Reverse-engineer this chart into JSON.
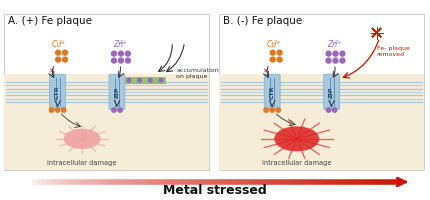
{
  "title_A": "A. (+) Fe plaque",
  "title_B": "B. (-) Fe plaque",
  "bottom_label": "Metal stressed",
  "label_CTR": "CTR",
  "label_ZIP": "ZIP",
  "label_intracellular_damage": "intracellular damage",
  "label_accumulation": "accumulation\non plaque",
  "label_fe_plaque_removed": "Fe- plaque\nremoved",
  "label_Cu": "Cu",
  "label_Zn": "Zn",
  "color_orange": "#E07820",
  "color_purple": "#9966BB",
  "color_green": "#88BB66",
  "color_red_dark": "#CC1100",
  "color_membrane_fill": "#A8C8E0",
  "color_membrane_line": "#8AB0CC",
  "color_membrane_stripe": "#B8D4E8",
  "color_cell_bg": "#F5EDD8",
  "color_above_bg": "#FFFFFF",
  "color_arrow": "#333333",
  "color_arrow_red": "#CC1100",
  "color_damage_A": "#F0A0A0",
  "color_damage_B": "#DD2222",
  "color_text": "#222222",
  "color_text_red": "#CC1100",
  "color_border": "#BBBBBB",
  "fig_width": 4.3,
  "fig_height": 2.0,
  "dpi": 100
}
